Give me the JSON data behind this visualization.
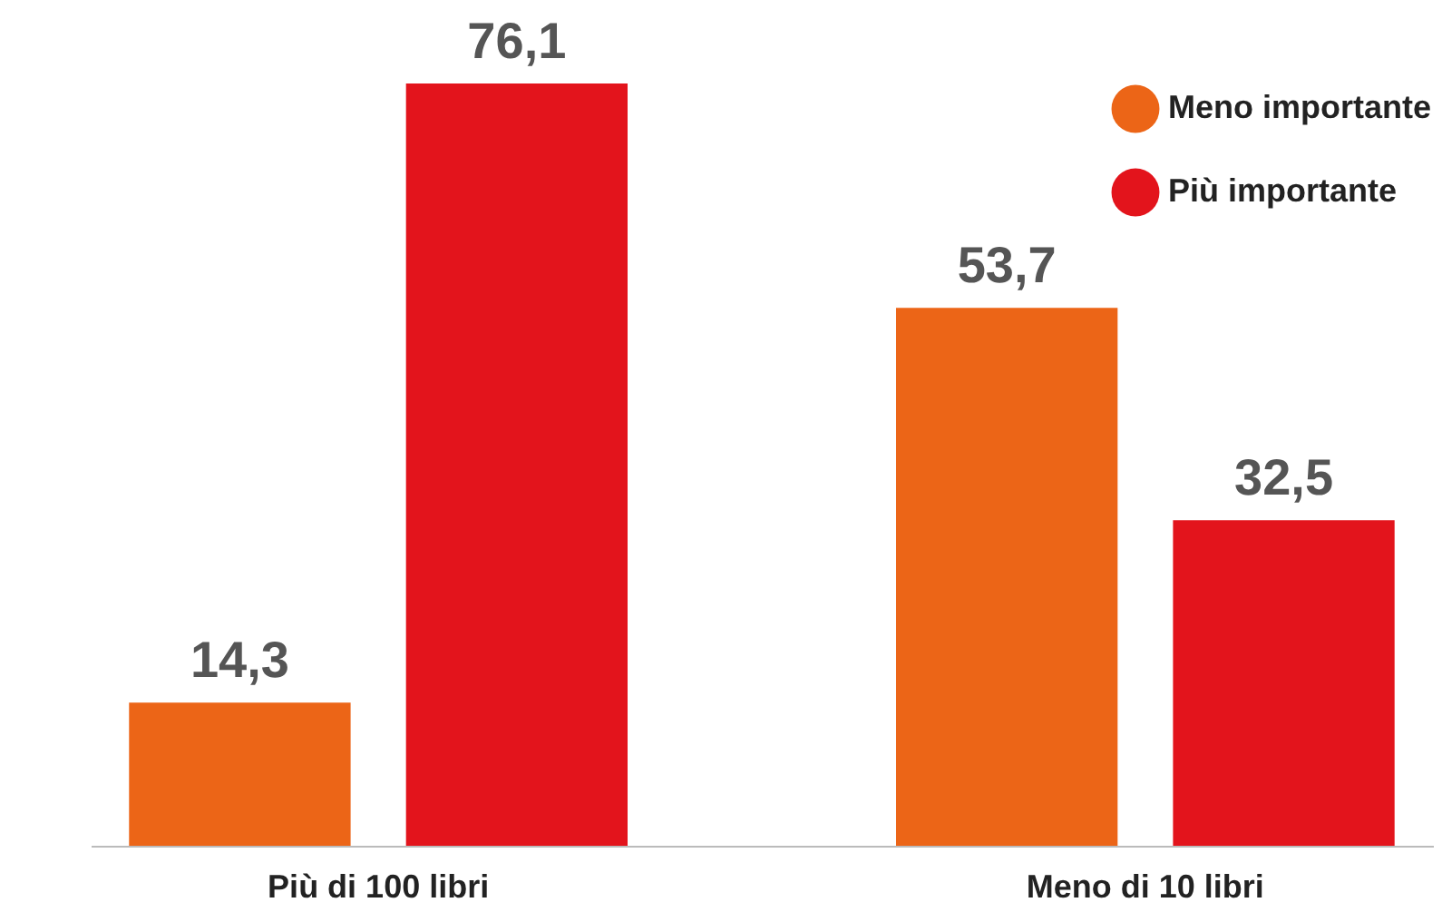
{
  "chart_data": {
    "type": "bar",
    "categories": [
      "Più di 100 libri",
      "Meno di 10 libri"
    ],
    "series": [
      {
        "name": "Meno importante",
        "color": "#ec6517",
        "values": [
          14.3,
          53.7
        ],
        "value_labels": [
          "14,3",
          "53,7"
        ]
      },
      {
        "name": "Più importante",
        "color": "#e3141c",
        "values": [
          76.1,
          32.5
        ],
        "value_labels": [
          "76,1",
          "32,5"
        ]
      }
    ],
    "legend": "top right"
  }
}
